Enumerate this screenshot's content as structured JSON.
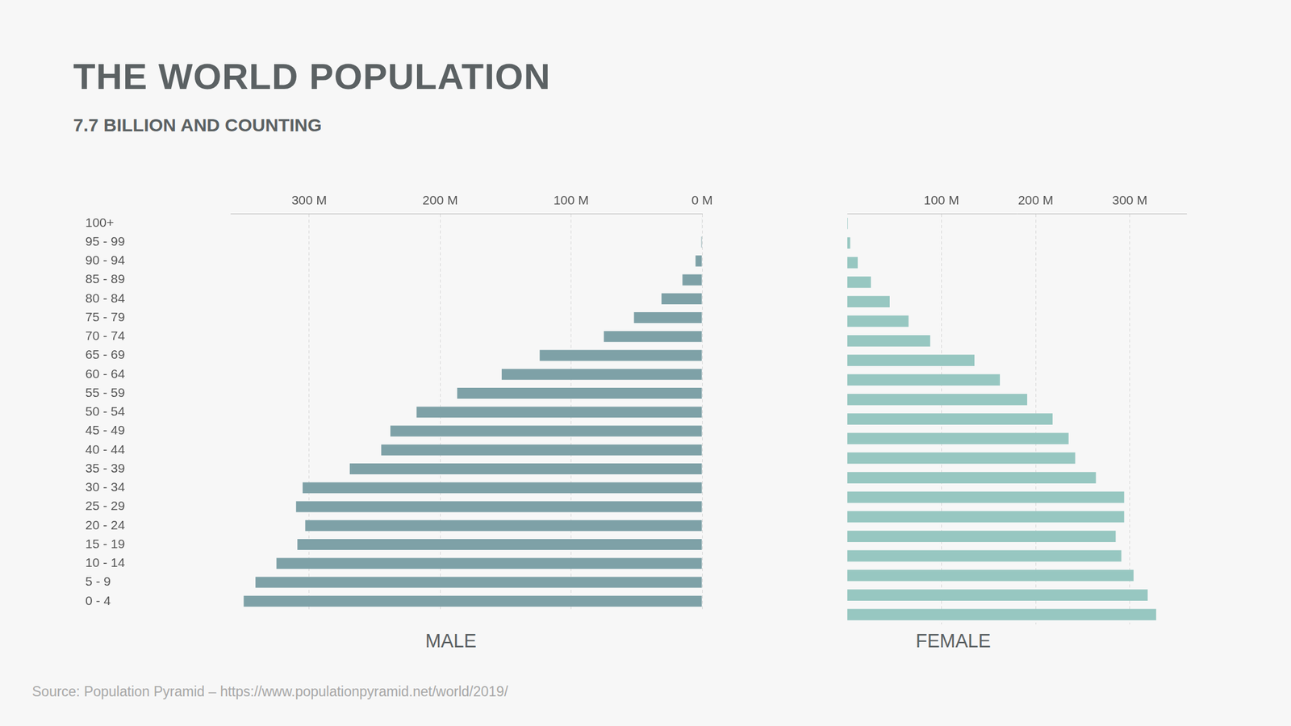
{
  "chart_data": {
    "type": "bar",
    "orientation": "horizontal",
    "title": "THE WORLD POPULATION",
    "subtitle": "7.7 BILLION AND COUNTING",
    "source": "Source: Population Pyramid – https://www.populationpyramid.net/world/2019/",
    "categories": [
      "100+",
      "95 - 99",
      "90 - 94",
      "85 - 89",
      "80 - 84",
      "75 - 79",
      "70 - 74",
      "65 - 69",
      "60 - 64",
      "55 - 59",
      "50 - 54",
      "45 - 49",
      "40 - 44",
      "35 - 39",
      "30 - 34",
      "25 - 29",
      "20 - 24",
      "15 - 19",
      "10 - 14",
      "5 - 9",
      "0 - 4"
    ],
    "series": [
      {
        "name": "MALE",
        "color": "#7ea1a7",
        "values": [
          0.2,
          0.6,
          5,
          15,
          31,
          52,
          75,
          124,
          153,
          187,
          218,
          238,
          245,
          269,
          305,
          310,
          303,
          309,
          325,
          341,
          350
        ]
      },
      {
        "name": "FEMALE",
        "color": "#97c7c1",
        "values": [
          0.5,
          3,
          11,
          25,
          45,
          65,
          88,
          135,
          162,
          191,
          218,
          235,
          242,
          264,
          294,
          294,
          285,
          291,
          304,
          319,
          328
        ]
      }
    ],
    "xlim": [
      0,
      360
    ],
    "xticks": [
      {
        "value": 0,
        "label": "0 M"
      },
      {
        "value": 100,
        "label": "100 M"
      },
      {
        "value": 200,
        "label": "200 M"
      },
      {
        "value": 300,
        "label": "300 M"
      }
    ],
    "grid": true
  }
}
